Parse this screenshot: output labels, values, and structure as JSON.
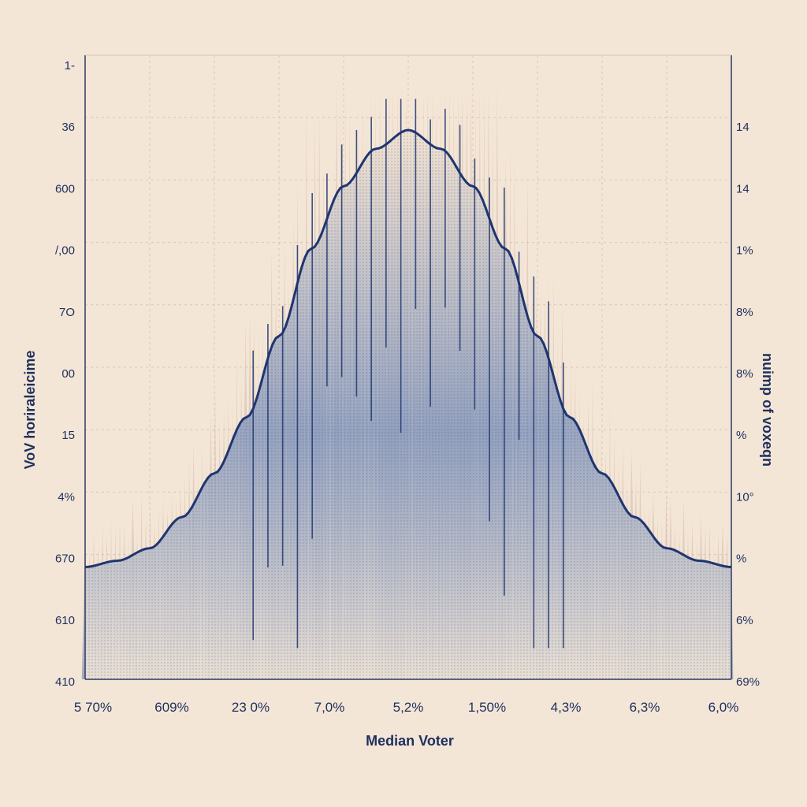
{
  "chart_data": {
    "type": "area",
    "xlabel": "Median Voter",
    "ylabel_left": "VoV horiraleicime",
    "ylabel_right": "nuimp of voxeqn",
    "x_tick_labels": [
      "5 70%",
      "609%",
      "23 0%",
      "7,0%",
      "5,2%",
      "1,50%",
      "4,3%",
      "6,3%",
      "6,0%"
    ],
    "y_left_tick_labels": [
      "1-",
      "36",
      "600",
      "/,00",
      "7O",
      "00",
      "15",
      "4%",
      "670",
      "610",
      "410"
    ],
    "y_right_tick_labels": [
      "",
      "14",
      "14",
      "1%",
      "8%",
      "8%",
      "%",
      "10°",
      "%",
      "6%",
      "69%"
    ],
    "x": [
      0,
      0.05,
      0.1,
      0.15,
      0.2,
      0.25,
      0.3,
      0.35,
      0.4,
      0.45,
      0.5,
      0.55,
      0.6,
      0.65,
      0.7,
      0.75,
      0.8,
      0.85,
      0.9,
      0.95,
      1.0
    ],
    "series": [
      {
        "values": [
          0.18,
          0.19,
          0.21,
          0.26,
          0.33,
          0.42,
          0.55,
          0.69,
          0.79,
          0.85,
          0.88,
          0.85,
          0.79,
          0.69,
          0.55,
          0.42,
          0.33,
          0.26,
          0.21,
          0.19,
          0.18
        ]
      }
    ],
    "ylim": [
      0,
      1
    ],
    "grid": true,
    "colors": {
      "curve": "#1f3570",
      "fill": "#4a6399",
      "spikes_warm": "#e6b596",
      "spikes_cool": "#5f79a8",
      "background": "#f3e6d7",
      "grid": "#d8c7b2",
      "text": "#1e2f5c"
    }
  }
}
